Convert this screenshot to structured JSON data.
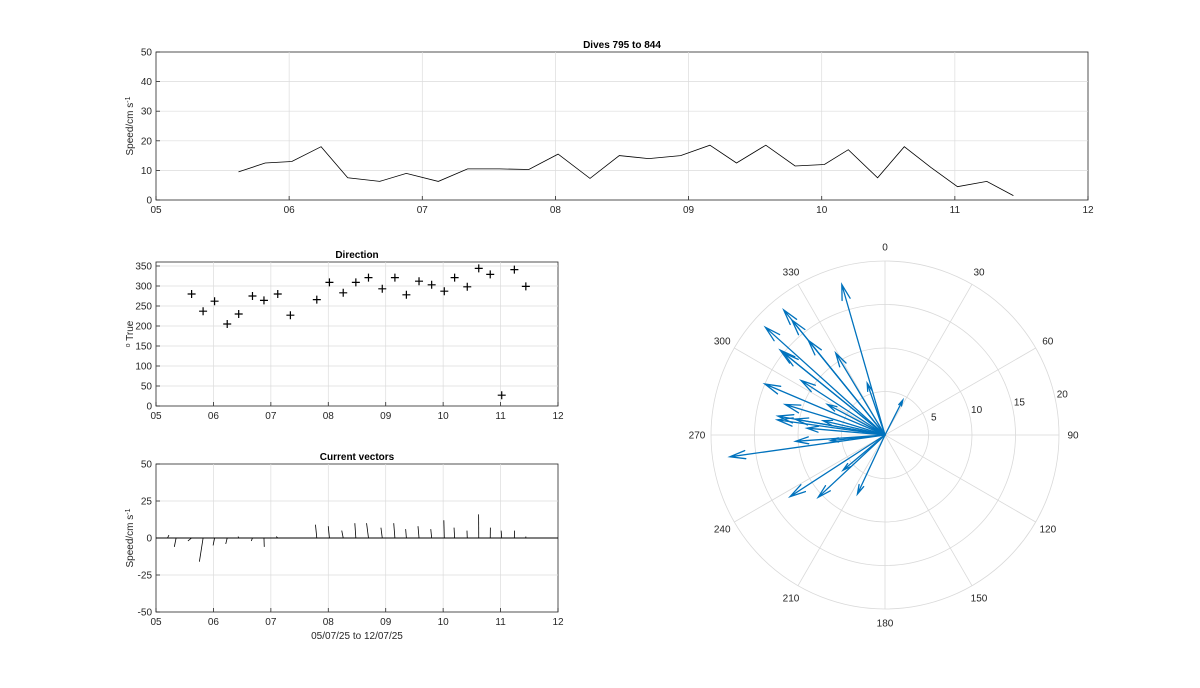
{
  "chart_data": [
    {
      "id": "speed",
      "type": "line",
      "title": "Dives 795 to 844",
      "ylabel": "Speed/cm s",
      "ylabel_sup": "-1",
      "xlabel": "",
      "xlim": [
        5,
        12
      ],
      "ylim": [
        0,
        50
      ],
      "xticks": [
        5,
        6,
        7,
        8,
        9,
        10,
        11,
        12
      ],
      "xticklabels": [
        "05",
        "06",
        "07",
        "08",
        "09",
        "10",
        "11",
        "12"
      ],
      "yticks": [
        0,
        10,
        20,
        30,
        40,
        50
      ],
      "yticklabels": [
        "0",
        "10",
        "20",
        "30",
        "40",
        "50"
      ],
      "grid": true,
      "color": "#000000",
      "x": [
        5.62,
        5.82,
        6.02,
        6.24,
        6.44,
        6.68,
        6.88,
        7.12,
        7.34,
        7.58,
        7.8,
        8.02,
        8.26,
        8.48,
        8.7,
        8.94,
        9.16,
        9.36,
        9.58,
        9.8,
        10.02,
        10.2,
        10.42,
        10.62,
        10.82,
        11.02,
        11.24,
        11.44
      ],
      "y": [
        9.5,
        12.5,
        13,
        18,
        7.5,
        6.3,
        9,
        6.3,
        10.5,
        10.5,
        10.3,
        15.5,
        7.3,
        15,
        14,
        15,
        18.5,
        12.5,
        18.5,
        11.5,
        12,
        17,
        7.5,
        18,
        11,
        4.5,
        6.3,
        1.5
      ]
    },
    {
      "id": "direction",
      "type": "scatter",
      "title": "Direction",
      "ylabel": "True",
      "ylabel_prefix": "o",
      "xlim": [
        5,
        12
      ],
      "ylim": [
        0,
        360
      ],
      "xticks": [
        5,
        6,
        7,
        8,
        9,
        10,
        11,
        12
      ],
      "xticklabels": [
        "05",
        "06",
        "07",
        "08",
        "09",
        "10",
        "11",
        "12"
      ],
      "yticks": [
        0,
        50,
        100,
        150,
        200,
        250,
        300,
        350
      ],
      "yticklabels": [
        "0",
        "50",
        "100",
        "150",
        "200",
        "250",
        "300",
        "350"
      ],
      "grid": true,
      "marker": "+",
      "color": "#000000",
      "x": [
        5.62,
        5.82,
        6.02,
        6.24,
        6.44,
        6.68,
        6.88,
        7.12,
        7.34,
        7.8,
        8.02,
        8.26,
        8.48,
        8.7,
        8.94,
        9.16,
        9.36,
        9.58,
        9.8,
        10.02,
        10.2,
        10.42,
        10.62,
        10.82,
        11.02,
        11.24,
        11.44
      ],
      "y": [
        280,
        237,
        262,
        205,
        230,
        275,
        264,
        280,
        227,
        266,
        309,
        283,
        309,
        321,
        293,
        321,
        278,
        312,
        303,
        287,
        321,
        298,
        344,
        329,
        27,
        341,
        299
      ]
    },
    {
      "id": "vectors",
      "type": "line",
      "title": "Current vectors",
      "ylabel": "Speed/cm s",
      "ylabel_sup": "-1",
      "xlabel": "05/07/25 to 12/07/25",
      "xlim": [
        5,
        12
      ],
      "ylim": [
        -50,
        50
      ],
      "xticks": [
        5,
        6,
        7,
        8,
        9,
        10,
        11,
        12
      ],
      "xticklabels": [
        "05",
        "06",
        "07",
        "08",
        "09",
        "10",
        "11",
        "12"
      ],
      "yticks": [
        -50,
        -25,
        0,
        25,
        50
      ],
      "yticklabels": [
        "-50",
        "-25",
        "0",
        "25",
        "50"
      ],
      "grid": true,
      "color": "#000000",
      "x_start": [
        5.2,
        5.35,
        5.62,
        5.82,
        6.02,
        6.24,
        6.44,
        6.68,
        6.88,
        7.12,
        7.34,
        7.58,
        7.8,
        8.02,
        8.26,
        8.48,
        8.7,
        8.94,
        9.16,
        9.36,
        9.58,
        9.8,
        10.02,
        10.2,
        10.42,
        10.62,
        10.82,
        11.02,
        11.24,
        11.44
      ],
      "u": [
        1,
        -1.2,
        -2.5,
        -2.5,
        -1,
        -1,
        -0.4,
        -0.8,
        0.2,
        -1,
        -0.6,
        -0.6,
        -0.9,
        -0.8,
        -1,
        -0.7,
        -1.3,
        -0.9,
        -0.8,
        -0.5,
        -0.7,
        -0.6,
        -0.3,
        -0.4,
        -0.2,
        -0.1,
        0.1,
        -0.4,
        0.1,
        0
      ],
      "v": [
        2,
        -6,
        -2,
        -16,
        -5,
        -4,
        1,
        -2,
        -6,
        1,
        0,
        0,
        9,
        8,
        5,
        10,
        10,
        7,
        10,
        6,
        8,
        6,
        12,
        7,
        5,
        16,
        7,
        5,
        5,
        1
      ]
    },
    {
      "id": "compass",
      "type": "scatter",
      "title": "",
      "angle_ticks": [
        0,
        30,
        60,
        90,
        120,
        150,
        180,
        210,
        240,
        270,
        300,
        330
      ],
      "angle_ticklabels": [
        "0",
        "30",
        "60",
        "90",
        "120",
        "150",
        "180",
        "210",
        "240",
        "270",
        "300",
        "330"
      ],
      "rlim": [
        0,
        20
      ],
      "rticks": [
        5,
        10,
        15,
        20
      ],
      "rticklabels": [
        "5",
        "10",
        "15",
        "20"
      ],
      "color": "#0072BD",
      "theta": [
        280,
        237,
        262,
        205,
        230,
        275,
        264,
        280,
        227,
        266,
        309,
        283,
        309,
        321,
        293,
        321,
        278,
        312,
        303,
        287,
        321,
        298,
        344,
        329,
        27,
        341,
        299
      ],
      "r": [
        12.5,
        13,
        18,
        7.5,
        6.3,
        9,
        6.3,
        10.5,
        10.5,
        10.3,
        15.5,
        7.3,
        15,
        14,
        15,
        18.5,
        12.5,
        18.5,
        11.5,
        12,
        17,
        7.5,
        18,
        11,
        4.5,
        6.3,
        1.5
      ]
    }
  ]
}
